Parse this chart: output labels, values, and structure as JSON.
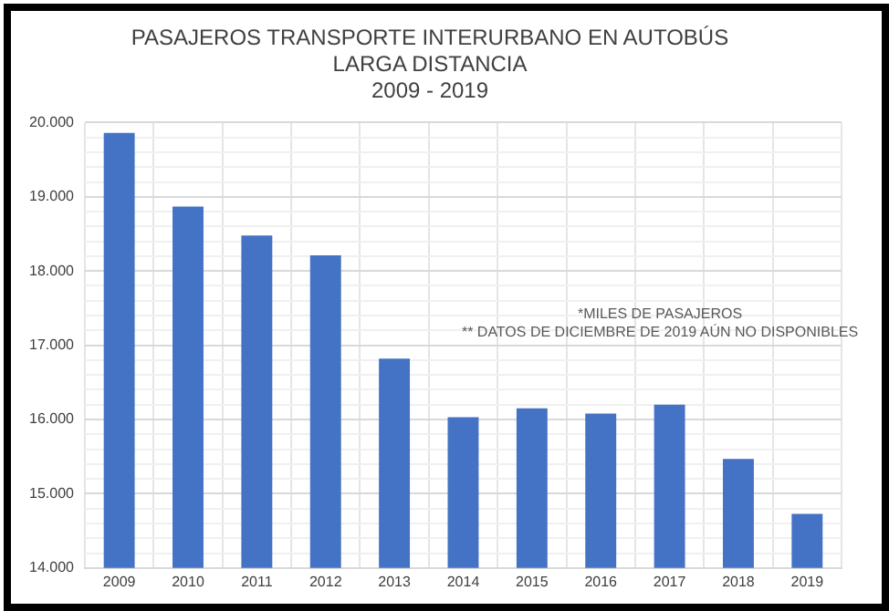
{
  "chart_data": {
    "type": "bar",
    "title": "PASAJEROS TRANSPORTE INTERURBANO EN AUTOBÚS\nLARGA DISTANCIA\n2009 - 2019",
    "categories": [
      "2009",
      "2010",
      "2011",
      "2012",
      "2013",
      "2014",
      "2015",
      "2016",
      "2017",
      "2018",
      "2019"
    ],
    "values": [
      19860,
      18870,
      18480,
      18210,
      16820,
      16030,
      16150,
      16080,
      16200,
      15470,
      14730
    ],
    "color": "#4472c4",
    "ylim": [
      14000,
      20000
    ],
    "yticks": [
      {
        "value": 14000,
        "label": "14.000"
      },
      {
        "value": 14200,
        "label": null
      },
      {
        "value": 14400,
        "label": null
      },
      {
        "value": 14600,
        "label": null
      },
      {
        "value": 14800,
        "label": null
      },
      {
        "value": 15000,
        "label": "15.000"
      },
      {
        "value": 15200,
        "label": null
      },
      {
        "value": 15400,
        "label": null
      },
      {
        "value": 15600,
        "label": null
      },
      {
        "value": 15800,
        "label": null
      },
      {
        "value": 16000,
        "label": "16.000"
      },
      {
        "value": 16200,
        "label": null
      },
      {
        "value": 16400,
        "label": null
      },
      {
        "value": 16600,
        "label": null
      },
      {
        "value": 16800,
        "label": null
      },
      {
        "value": 17000,
        "label": "17.000"
      },
      {
        "value": 17200,
        "label": null
      },
      {
        "value": 17400,
        "label": null
      },
      {
        "value": 17600,
        "label": null
      },
      {
        "value": 17800,
        "label": null
      },
      {
        "value": 18000,
        "label": "18.000"
      },
      {
        "value": 18200,
        "label": null
      },
      {
        "value": 18400,
        "label": null
      },
      {
        "value": 18600,
        "label": null
      },
      {
        "value": 18800,
        "label": null
      },
      {
        "value": 19000,
        "label": "19.000"
      },
      {
        "value": 19200,
        "label": null
      },
      {
        "value": 19400,
        "label": null
      },
      {
        "value": 19600,
        "label": null
      },
      {
        "value": 19800,
        "label": null
      },
      {
        "value": 20000,
        "label": "20.000"
      }
    ],
    "grid": true,
    "annotations": [
      "*MILES DE PASAJEROS",
      "** DATOS DE DICIEMBRE DE 2019 AÚN NO DISPONIBLES"
    ]
  }
}
